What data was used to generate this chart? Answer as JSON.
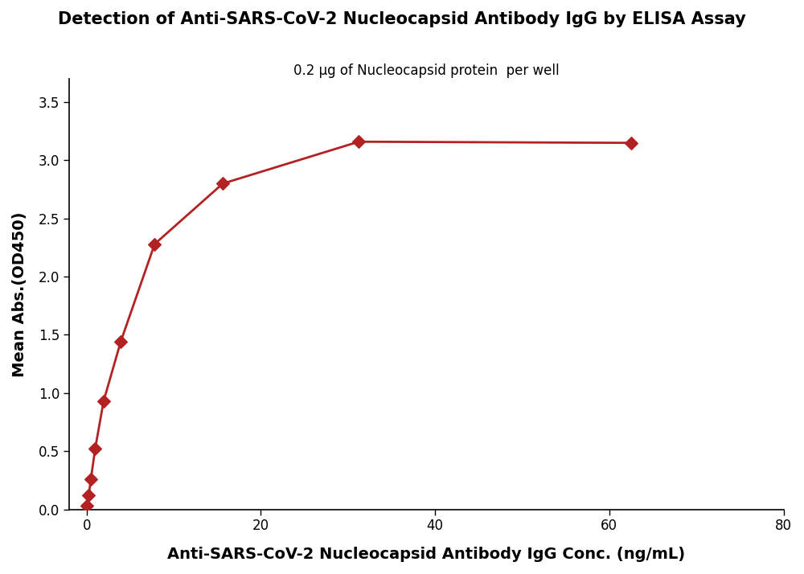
{
  "title": "Detection of Anti-SARS-CoV-2 Nucleocapsid Antibody IgG by ELISA Assay",
  "subtitle": "0.2 μg of Nucleocapsid protein  per well",
  "xlabel": "Anti-SARS-CoV-2 Nucleocapsid Antibody IgG Conc. (ng/mL)",
  "ylabel": "Mean Abs.(OD450)",
  "x_data": [
    0.0,
    0.24,
    0.49,
    0.98,
    1.95,
    3.91,
    7.81,
    15.63,
    31.25,
    62.5
  ],
  "y_data": [
    0.03,
    0.12,
    0.26,
    0.52,
    0.93,
    1.44,
    2.28,
    2.8,
    3.16,
    3.15
  ],
  "xlim": [
    -2,
    80
  ],
  "ylim": [
    0,
    3.7
  ],
  "xticks": [
    0,
    20,
    40,
    60,
    80
  ],
  "yticks": [
    0.0,
    0.5,
    1.0,
    1.5,
    2.0,
    2.5,
    3.0,
    3.5
  ],
  "color": "#b22222",
  "marker": "D",
  "markersize": 8,
  "linewidth": 2.0,
  "title_fontsize": 15,
  "subtitle_fontsize": 12,
  "label_fontsize": 14,
  "tick_fontsize": 12,
  "background_color": "#ffffff"
}
